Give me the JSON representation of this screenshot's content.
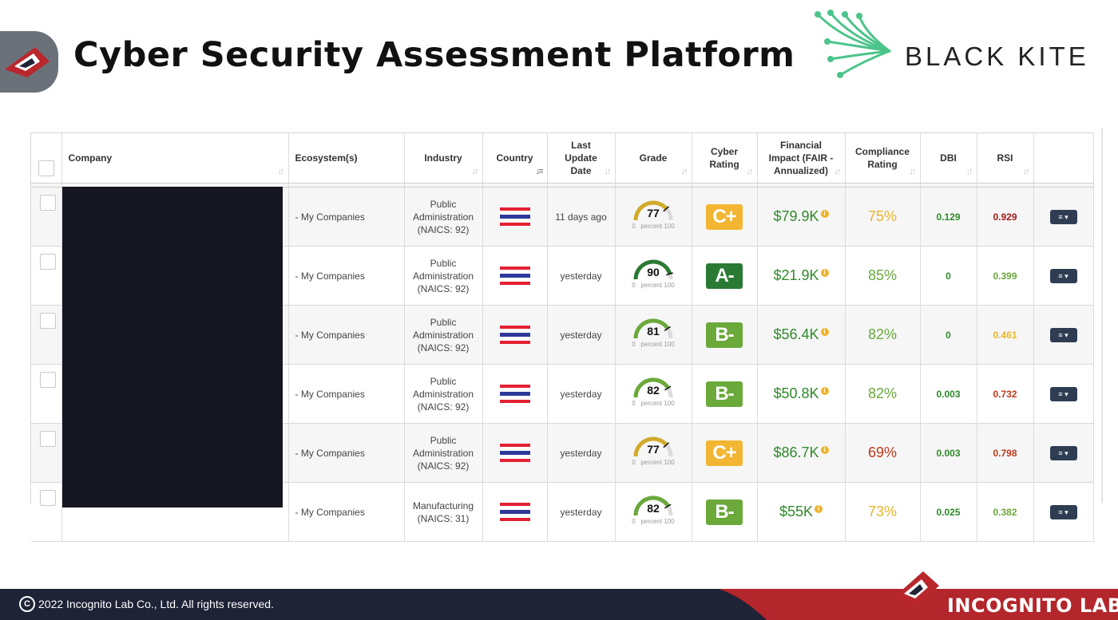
{
  "header": {
    "title": "Cyber Security Assessment Platform",
    "partner_logo_text": "BLACK KITE"
  },
  "table": {
    "columns": [
      {
        "key": "select",
        "label": ""
      },
      {
        "key": "company",
        "label": "Company"
      },
      {
        "key": "ecosystem",
        "label": "Ecosystem(s)"
      },
      {
        "key": "industry",
        "label": "Industry"
      },
      {
        "key": "country",
        "label": "Country"
      },
      {
        "key": "last_update",
        "label": "Last Update Date"
      },
      {
        "key": "grade",
        "label": "Grade"
      },
      {
        "key": "cyber_rating",
        "label": "Cyber Rating"
      },
      {
        "key": "financial_impact",
        "label": "Financial Impact (FAIR - Annualized)"
      },
      {
        "key": "compliance",
        "label": "Compliance Rating"
      },
      {
        "key": "dbi",
        "label": "DBI"
      },
      {
        "key": "rsi",
        "label": "RSI"
      },
      {
        "key": "actions",
        "label": ""
      }
    ],
    "gauge_min_label": "0",
    "gauge_unit_label": "percent",
    "gauge_max_label": "100",
    "rows": [
      {
        "ecosystem": "- My Companies",
        "industry_1": "Public",
        "industry_2": "Administration",
        "industry_3": "(NAICS: 92)",
        "last_update": "11 days ago",
        "grade": 77,
        "grade_color": "#d2aa2a",
        "rating": "C+",
        "rating_color": "#f2b632",
        "financial": "$79.9K",
        "compliance": "75%",
        "compliance_color": "#e8b52c",
        "dbi": "0.129",
        "dbi_color": "#2f8a2a",
        "rsi": "0.929",
        "rsi_color": "#a31818"
      },
      {
        "ecosystem": "- My Companies",
        "industry_1": "Public",
        "industry_2": "Administration",
        "industry_3": "(NAICS: 92)",
        "last_update": "yesterday",
        "grade": 90,
        "grade_color": "#2a7a33",
        "rating": "A-",
        "rating_color": "#2a7a33",
        "financial": "$21.9K",
        "compliance": "85%",
        "compliance_color": "#68a93a",
        "dbi": "0",
        "dbi_color": "#2f8a2a",
        "rsi": "0.399",
        "rsi_color": "#6aa93a"
      },
      {
        "ecosystem": "- My Companies",
        "industry_1": "Public",
        "industry_2": "Administration",
        "industry_3": "(NAICS: 92)",
        "last_update": "yesterday",
        "grade": 81,
        "grade_color": "#6aa93a",
        "rating": "B-",
        "rating_color": "#6aa93a",
        "financial": "$56.4K",
        "compliance": "82%",
        "compliance_color": "#68a93a",
        "dbi": "0",
        "dbi_color": "#2f8a2a",
        "rsi": "0.461",
        "rsi_color": "#e8b52c"
      },
      {
        "ecosystem": "- My Companies",
        "industry_1": "Public",
        "industry_2": "Administration",
        "industry_3": "(NAICS: 92)",
        "last_update": "yesterday",
        "grade": 82,
        "grade_color": "#6aa93a",
        "rating": "B-",
        "rating_color": "#6aa93a",
        "financial": "$50.8K",
        "compliance": "82%",
        "compliance_color": "#68a93a",
        "dbi": "0.003",
        "dbi_color": "#2f8a2a",
        "rsi": "0.732",
        "rsi_color": "#c0391b"
      },
      {
        "ecosystem": "- My Companies",
        "industry_1": "Public",
        "industry_2": "Administration",
        "industry_3": "(NAICS: 92)",
        "last_update": "yesterday",
        "grade": 77,
        "grade_color": "#d2aa2a",
        "rating": "C+",
        "rating_color": "#f2b632",
        "financial": "$86.7K",
        "compliance": "69%",
        "compliance_color": "#c0391b",
        "dbi": "0.003",
        "dbi_color": "#2f8a2a",
        "rsi": "0.798",
        "rsi_color": "#c0391b"
      },
      {
        "ecosystem": "- My Companies",
        "industry_1": "Manufacturing",
        "industry_2": "(NAICS: 31)",
        "industry_3": "",
        "last_update": "yesterday",
        "grade": 82,
        "grade_color": "#6aa93a",
        "rating": "B-",
        "rating_color": "#6aa93a",
        "financial": "$55K",
        "compliance": "73%",
        "compliance_color": "#e8b52c",
        "dbi": "0.025",
        "dbi_color": "#2f8a2a",
        "rsi": "0.382",
        "rsi_color": "#6aa93a"
      }
    ]
  },
  "footer": {
    "copyright": "2022 Incognito Lab Co., Ltd. All rights reserved.",
    "brand": "INCOGNITO LAB"
  },
  "colors": {
    "footer_bg": "#1e2336",
    "footer_accent": "#b3262b",
    "flag_red": "#e42032",
    "flag_blue": "#2d3a9a",
    "menu_button": "#2e3d52"
  }
}
